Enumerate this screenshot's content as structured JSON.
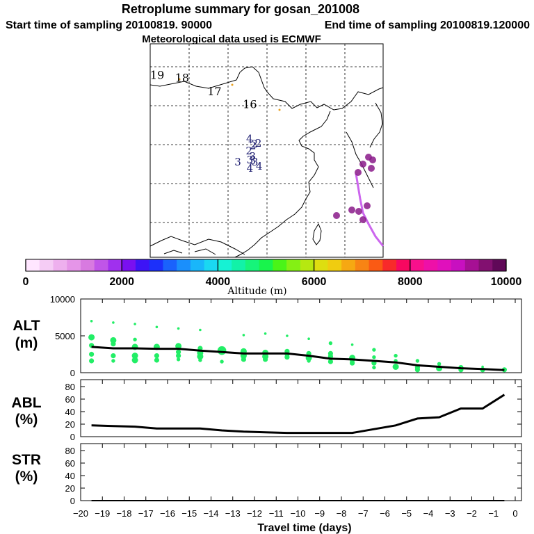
{
  "header": {
    "title": "Retroplume summary for gosan_201008",
    "start_time": "Start time of sampling 20100819. 90000",
    "end_time": "End time of sampling 20100819.120000",
    "met_data": "Meteorological data used is ECMWF"
  },
  "colors": {
    "trajectory": "#cc66ee",
    "alt_points": "#22ee66",
    "line": "#000000"
  },
  "chart_data": [
    {
      "type": "map",
      "name": "retroplume-map",
      "day_labels": [
        {
          "text": "19",
          "lon": 96.8,
          "lat": 51.9
        },
        {
          "text": "18",
          "lon": 103.2,
          "lat": 51.2
        },
        {
          "text": "17",
          "lon": 111.5,
          "lat": 47.7
        },
        {
          "text": "16",
          "lon": 120.6,
          "lat": 44.4
        },
        {
          "text": "4",
          "lon": 120.5,
          "lat": 35.6
        },
        {
          "text": "2",
          "lon": 122.8,
          "lat": 34.5
        },
        {
          "text": "2",
          "lon": 121.8,
          "lat": 34.3
        },
        {
          "text": "2",
          "lon": 121.4,
          "lat": 33.8
        },
        {
          "text": "2",
          "lon": 120.4,
          "lat": 32.5
        },
        {
          "text": "3",
          "lon": 121.3,
          "lat": 31.1
        },
        {
          "text": "3",
          "lon": 120.6,
          "lat": 30.2
        },
        {
          "text": "3",
          "lon": 121.3,
          "lat": 30.0
        },
        {
          "text": "3",
          "lon": 121.9,
          "lat": 29.6
        },
        {
          "text": "3",
          "lon": 117.5,
          "lat": 29.6
        },
        {
          "text": "4",
          "lon": 123.0,
          "lat": 28.6
        },
        {
          "text": "4",
          "lon": 120.6,
          "lat": 28.0
        }
      ],
      "colorbar": {
        "title": "Altitude (m)",
        "ticks": [
          "0",
          "2000",
          "4000",
          "6000",
          "8000",
          "10000"
        ],
        "range": [
          0,
          10000
        ]
      }
    },
    {
      "type": "scatter",
      "name": "alt-panel",
      "ylabel": "ALT",
      "yunit": "(m)",
      "ylim": [
        0,
        10000
      ],
      "yticks": [
        "10000",
        "5000",
        "0"
      ],
      "median_x": [
        -19.5,
        -18.5,
        -17.5,
        -16.5,
        -15.5,
        -14.5,
        -13.5,
        -12.5,
        -11.5,
        -10.5,
        -9.5,
        -8.5,
        -7.5,
        -6.5,
        -5.5,
        -4.5,
        -3.5,
        -2.5,
        -1.5,
        -0.5
      ],
      "median_y": [
        3500,
        3300,
        3300,
        3250,
        3250,
        3000,
        2800,
        2600,
        2600,
        2600,
        2300,
        1900,
        1800,
        1600,
        1400,
        1000,
        800,
        600,
        500,
        350
      ],
      "points": [
        {
          "x": -19.5,
          "y": 7000,
          "s": 2
        },
        {
          "x": -19.5,
          "y": 4800,
          "s": 5
        },
        {
          "x": -19.5,
          "y": 3700,
          "s": 4
        },
        {
          "x": -19.5,
          "y": 2500,
          "s": 4
        },
        {
          "x": -19.5,
          "y": 1600,
          "s": 4
        },
        {
          "x": -18.5,
          "y": 6800,
          "s": 2
        },
        {
          "x": -18.5,
          "y": 4400,
          "s": 5
        },
        {
          "x": -18.5,
          "y": 3900,
          "s": 4
        },
        {
          "x": -18.5,
          "y": 2300,
          "s": 4
        },
        {
          "x": -18.5,
          "y": 1600,
          "s": 3
        },
        {
          "x": -17.5,
          "y": 6600,
          "s": 2
        },
        {
          "x": -17.5,
          "y": 4500,
          "s": 3
        },
        {
          "x": -17.5,
          "y": 3500,
          "s": 5
        },
        {
          "x": -17.5,
          "y": 2300,
          "s": 5
        },
        {
          "x": -17.5,
          "y": 1700,
          "s": 5
        },
        {
          "x": -16.5,
          "y": 6200,
          "s": 2
        },
        {
          "x": -16.5,
          "y": 3500,
          "s": 5
        },
        {
          "x": -16.5,
          "y": 2300,
          "s": 4
        },
        {
          "x": -16.5,
          "y": 1700,
          "s": 4
        },
        {
          "x": -15.5,
          "y": 6000,
          "s": 2
        },
        {
          "x": -15.5,
          "y": 3600,
          "s": 5
        },
        {
          "x": -15.5,
          "y": 2800,
          "s": 4
        },
        {
          "x": -15.5,
          "y": 2300,
          "s": 4
        },
        {
          "x": -15.5,
          "y": 1800,
          "s": 3
        },
        {
          "x": -14.5,
          "y": 5800,
          "s": 2
        },
        {
          "x": -14.5,
          "y": 3300,
          "s": 4
        },
        {
          "x": -14.5,
          "y": 2700,
          "s": 5
        },
        {
          "x": -14.5,
          "y": 2200,
          "s": 5
        },
        {
          "x": -14.5,
          "y": 1700,
          "s": 3
        },
        {
          "x": -13.5,
          "y": 3000,
          "s": 7
        },
        {
          "x": -13.5,
          "y": 1500,
          "s": 3
        },
        {
          "x": -12.5,
          "y": 5100,
          "s": 2
        },
        {
          "x": -12.5,
          "y": 2900,
          "s": 5
        },
        {
          "x": -12.5,
          "y": 2300,
          "s": 5
        },
        {
          "x": -12.5,
          "y": 1800,
          "s": 4
        },
        {
          "x": -11.5,
          "y": 5300,
          "s": 2
        },
        {
          "x": -11.5,
          "y": 2700,
          "s": 5
        },
        {
          "x": -11.5,
          "y": 2200,
          "s": 5
        },
        {
          "x": -11.5,
          "y": 1800,
          "s": 4
        },
        {
          "x": -10.5,
          "y": 5000,
          "s": 2
        },
        {
          "x": -10.5,
          "y": 2900,
          "s": 4
        },
        {
          "x": -10.5,
          "y": 2500,
          "s": 4
        },
        {
          "x": -10.5,
          "y": 2100,
          "s": 4
        },
        {
          "x": -9.5,
          "y": 4600,
          "s": 2
        },
        {
          "x": -9.5,
          "y": 2600,
          "s": 4
        },
        {
          "x": -9.5,
          "y": 2000,
          "s": 5
        },
        {
          "x": -9.5,
          "y": 1600,
          "s": 3
        },
        {
          "x": -8.5,
          "y": 4000,
          "s": 3
        },
        {
          "x": -8.5,
          "y": 2600,
          "s": 4
        },
        {
          "x": -8.5,
          "y": 2200,
          "s": 4
        },
        {
          "x": -8.5,
          "y": 1500,
          "s": 4
        },
        {
          "x": -7.5,
          "y": 3800,
          "s": 2
        },
        {
          "x": -7.5,
          "y": 2000,
          "s": 5
        },
        {
          "x": -7.5,
          "y": 1700,
          "s": 4
        },
        {
          "x": -7.5,
          "y": 1300,
          "s": 4
        },
        {
          "x": -6.5,
          "y": 3100,
          "s": 3
        },
        {
          "x": -6.5,
          "y": 2100,
          "s": 3
        },
        {
          "x": -6.5,
          "y": 1300,
          "s": 4
        },
        {
          "x": -6.5,
          "y": 700,
          "s": 3
        },
        {
          "x": -5.5,
          "y": 2300,
          "s": 3
        },
        {
          "x": -5.5,
          "y": 1600,
          "s": 3
        },
        {
          "x": -5.5,
          "y": 800,
          "s": 5
        },
        {
          "x": -4.5,
          "y": 1600,
          "s": 3
        },
        {
          "x": -4.5,
          "y": 700,
          "s": 4
        },
        {
          "x": -4.5,
          "y": 400,
          "s": 4
        },
        {
          "x": -3.5,
          "y": 1200,
          "s": 3
        },
        {
          "x": -3.5,
          "y": 600,
          "s": 5
        },
        {
          "x": -2.5,
          "y": 700,
          "s": 4
        },
        {
          "x": -2.5,
          "y": 400,
          "s": 4
        },
        {
          "x": -1.5,
          "y": 800,
          "s": 2
        },
        {
          "x": -1.5,
          "y": 400,
          "s": 4
        },
        {
          "x": -0.5,
          "y": 400,
          "s": 4
        }
      ]
    },
    {
      "type": "line",
      "name": "abl-panel",
      "ylabel": "ABL",
      "yunit": "(%)",
      "ylim": [
        0,
        90
      ],
      "yticks": [
        "80",
        "60",
        "40",
        "20",
        "0"
      ],
      "x": [
        -19.5,
        -18.5,
        -17.5,
        -16.5,
        -15.5,
        -14.5,
        -13.5,
        -12.5,
        -11.5,
        -10.5,
        -9.5,
        -8.5,
        -7.5,
        -6.5,
        -5.5,
        -4.5,
        -3.5,
        -2.5,
        -1.5,
        -0.5
      ],
      "y": [
        18,
        17,
        16,
        13,
        13,
        13,
        10,
        8,
        7,
        6,
        6,
        6,
        6,
        12,
        18,
        29,
        31,
        45,
        45,
        67
      ]
    },
    {
      "type": "line",
      "name": "str-panel",
      "ylabel": "STR",
      "yunit": "(%)",
      "ylim": [
        0,
        90
      ],
      "yticks": [
        "80",
        "60",
        "40",
        "20",
        "0"
      ],
      "x": [
        -19.5,
        -18.5,
        -17.5,
        -16.5,
        -15.5,
        -14.5,
        -13.5,
        -12.5,
        -11.5,
        -10.5,
        -9.5,
        -8.5,
        -7.5,
        -6.5,
        -5.5,
        -4.5,
        -3.5,
        -2.5,
        -1.5,
        -0.5
      ],
      "y": [
        0,
        0,
        0,
        0,
        0,
        0,
        0,
        0,
        0,
        0,
        0,
        0,
        0,
        0,
        0,
        0,
        0,
        0,
        0,
        0
      ],
      "xlabel": "Travel time (days)",
      "xticks": [
        "−20",
        "−19",
        "−18",
        "−17",
        "−16",
        "−15",
        "−14",
        "−13",
        "−12",
        "−11",
        "−10",
        "−9",
        "−8",
        "−7",
        "−6",
        "−5",
        "−4",
        "−3",
        "−2",
        "−1",
        "0"
      ]
    }
  ]
}
